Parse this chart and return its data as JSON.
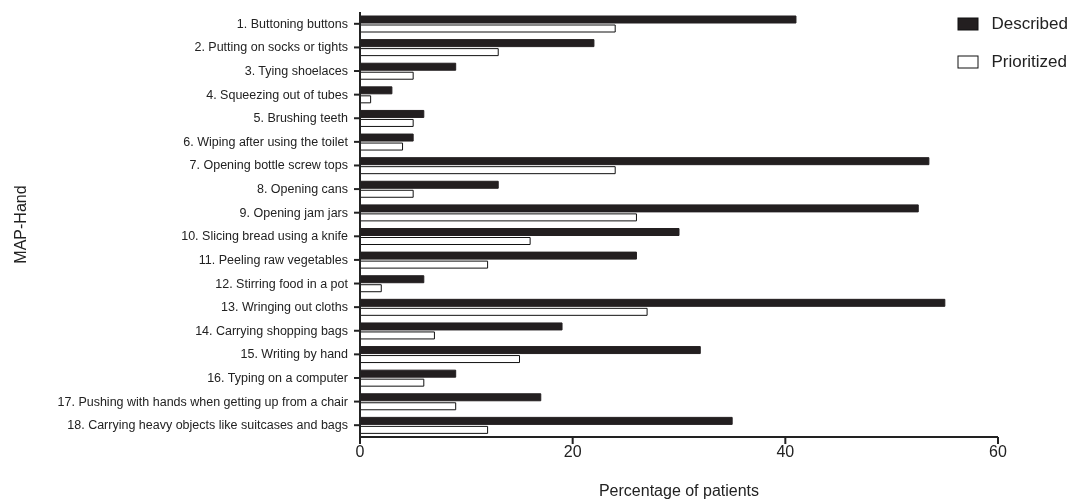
{
  "chart_data": {
    "type": "bar",
    "orientation": "horizontal",
    "xlabel": "Percentage of patients",
    "ylabel": "MAP-Hand",
    "categories": [
      "1. Buttoning buttons",
      "2. Putting on socks or tights",
      "3. Tying shoelaces",
      "4. Squeezing out of tubes",
      "5. Brushing teeth",
      "6. Wiping after using the toilet",
      "7. Opening bottle screw tops",
      "8. Opening cans",
      "9. Opening jam jars",
      "10. Slicing bread using a knife",
      "11. Peeling raw vegetables",
      "12. Stirring food in a pot",
      "13. Wringing out cloths",
      "14. Carrying shopping bags",
      "15. Writing by hand",
      "16. Typing on a computer",
      "17. Pushing with hands when getting up from a chair",
      "18. Carrying heavy objects like suitcases and bags"
    ],
    "series": [
      {
        "name": "Described",
        "color": "#231f20",
        "values": [
          41,
          22,
          9,
          3,
          6,
          5,
          53.5,
          13,
          52.5,
          30,
          26,
          6,
          55,
          19,
          32,
          9,
          17,
          35
        ]
      },
      {
        "name": "Prioritized",
        "color": "#ffffff",
        "values": [
          24,
          13,
          5,
          1,
          5,
          4,
          24,
          5,
          26,
          16,
          12,
          2,
          27,
          7,
          15,
          6,
          9,
          12
        ]
      }
    ],
    "xlim": [
      0,
      60
    ],
    "xticks": [
      0,
      20,
      40,
      60
    ],
    "grid": false,
    "legend": "top right"
  }
}
